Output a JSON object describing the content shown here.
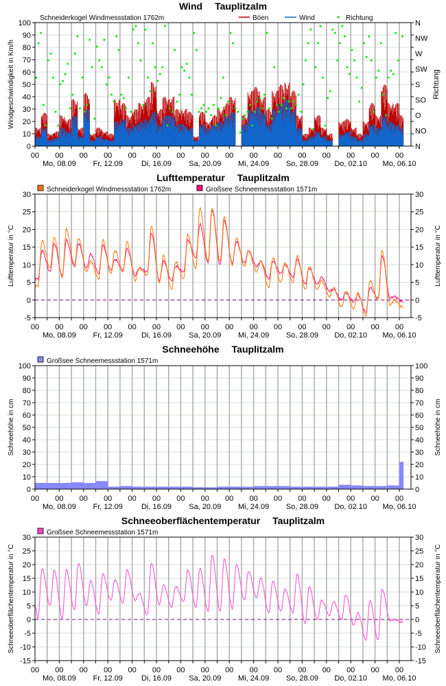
{
  "x_axis": {
    "hour_label": "00",
    "date_labels": [
      "Mo, 08.09",
      "Fr, 12.09",
      "Di, 16.09",
      "Sa, 20.09",
      "Mi, 24.09",
      "So, 28.09",
      "Do, 02.10",
      "Mo, 06.10"
    ],
    "date_label_days": [
      2,
      6,
      10,
      14,
      18,
      22,
      26,
      30
    ],
    "days_shown": 31,
    "data_end_day": 30.35
  },
  "chart_data": [
    {
      "type": "bar",
      "title": "Wind",
      "location": "Tauplitzalm",
      "station": "Schneiderkogel Windmessstation   1762m",
      "ylabel": "Windgeschwindigkeit in Km/h",
      "y2label": "Richtung",
      "ylim": [
        0,
        100
      ],
      "ytick_step": 10,
      "y2_ticks": [
        "N",
        "NO",
        "O",
        "SO",
        "S",
        "SW",
        "W",
        "NW",
        "N"
      ],
      "grid": true,
      "series": [
        {
          "name": "Böen",
          "color": "#bb0000",
          "resolution": "12h",
          "values": [
            15,
            27,
            10,
            12,
            25,
            22,
            38,
            15,
            43,
            10,
            15,
            12,
            10,
            38,
            35,
            25,
            30,
            35,
            40,
            52,
            30,
            40,
            40,
            30,
            30,
            28,
            8,
            28,
            20,
            25,
            30,
            35,
            40,
            0,
            25,
            45,
            48,
            40,
            30,
            45,
            50,
            52,
            45,
            25,
            10,
            15,
            25,
            15,
            10,
            0,
            20,
            22,
            15,
            10,
            20,
            35,
            25,
            50,
            35,
            35,
            25
          ]
        },
        {
          "name": "Wind",
          "color": "#1166cc",
          "resolution": "12h",
          "values": [
            8,
            15,
            5,
            7,
            15,
            12,
            25,
            8,
            30,
            5,
            8,
            6,
            5,
            20,
            22,
            15,
            18,
            20,
            22,
            28,
            18,
            25,
            25,
            18,
            18,
            15,
            5,
            18,
            15,
            18,
            20,
            25,
            28,
            0,
            18,
            30,
            32,
            28,
            18,
            30,
            35,
            38,
            30,
            15,
            5,
            8,
            12,
            8,
            5,
            0,
            10,
            12,
            8,
            5,
            10,
            18,
            15,
            25,
            20,
            18,
            15
          ]
        },
        {
          "name": "Richtung",
          "color": "#00ee00",
          "unit": "deg",
          "values_per_day": [
            [
              200,
              300,
              330,
              120,
              60
            ],
            [
              250,
              270,
              200,
              100,
              60
            ],
            [
              180,
              190,
              210,
              240,
              110
            ],
            [
              150,
              270,
              320,
              110,
              200
            ],
            [
              100,
              120,
              310,
              230,
              80
            ],
            [
              290,
              250,
              230,
              310,
              180
            ],
            [
              200,
              150,
              130,
              320,
              280
            ],
            [
              150,
              140,
              110,
              200,
              100
            ],
            [
              340,
              350,
              300,
              250,
              120
            ],
            [
              340,
              200,
              160,
              300,
              230
            ],
            [
              190,
              210,
              230,
              350,
              60
            ],
            [
              110,
              100,
              280,
              130,
              150
            ],
            [
              230,
              220,
              240,
              200,
              150
            ],
            [
              330,
              280,
              100,
              110,
              120
            ],
            [
              100,
              110,
              90,
              120,
              60
            ],
            [
              110,
              140,
              200,
              90,
              130
            ],
            [
              330,
              300,
              110,
              100,
              40
            ],
            [
              80,
              90,
              100,
              120,
              60
            ],
            [
              100,
              130,
              140,
              110,
              150
            ],
            [
              330,
              110,
              80,
              230,
              120
            ],
            [
              100,
              120,
              140,
              110,
              130
            ],
            [
              110,
              130,
              120,
              150,
              100
            ],
            [
              180,
              250,
              300,
              340,
              50
            ],
            [
              230,
              300,
              350,
              200,
              60
            ],
            [
              140,
              160,
              340,
              330,
              250
            ],
            [
              300,
              350,
              320,
              230,
              210
            ],
            [
              280,
              250,
              200,
              130,
              170
            ],
            [
              300,
              260,
              320,
              250,
              100
            ],
            [
              200,
              220,
              300,
              150,
              90
            ],
            [
              200,
              220,
              210,
              330,
              250
            ],
            [
              320,
              130
            ]
          ]
        }
      ]
    },
    {
      "type": "line",
      "title": "Lufttemperatur",
      "location": "Tauplitzalm",
      "ylabel": "Lufttemperatur in °C",
      "y2label": "Lufttemperatur in °C",
      "ylim": [
        -5,
        30
      ],
      "ytick_step": 5,
      "zero_line": true,
      "grid": true,
      "series": [
        {
          "name": "Großsee Schneemessstation   1571m",
          "color": "#ff1177",
          "start": 6,
          "daily_max": [
            14,
            16,
            17,
            16,
            13,
            15.5,
            11.5,
            14.5,
            9,
            19,
            11,
            9.5,
            17,
            21.5,
            25.5,
            22.5,
            16.5,
            14,
            11,
            11,
            10,
            11.5,
            9,
            6.5,
            3,
            2,
            1.5,
            3.5,
            12.5,
            1
          ],
          "daily_min": [
            6,
            8,
            7,
            9.5,
            9,
            7.5,
            8.5,
            8.5,
            7,
            8,
            5.5,
            5.5,
            8,
            12,
            10.5,
            10,
            10.5,
            10.5,
            9.5,
            6,
            7.5,
            6.5,
            4.5,
            4.5,
            2.5,
            0,
            -0.5,
            -3.5,
            0.5,
            0.5,
            -0.5
          ]
        },
        {
          "name": "Schneiderkogel Windmessstation   1762m",
          "color": "#ff7700",
          "start": 4,
          "daily_max": [
            16.8,
            17.8,
            20,
            17.5,
            11,
            17,
            14,
            16.5,
            9,
            21,
            12.5,
            10.8,
            18.5,
            26,
            26,
            23.5,
            17.5,
            14,
            11,
            12,
            10.5,
            12.5,
            9.5,
            5.5,
            3.5,
            2.5,
            2,
            5.5,
            14,
            0
          ],
          "daily_min": [
            4,
            9,
            6.5,
            10,
            8,
            6,
            7.5,
            8,
            5.5,
            7,
            5,
            3,
            6,
            9,
            11,
            11,
            10,
            9.5,
            8,
            3.5,
            5,
            5,
            3,
            3,
            1,
            -2,
            -2.5,
            -4.5,
            0,
            -1.5,
            -2
          ]
        }
      ]
    },
    {
      "type": "area",
      "title": "Schneehöhe",
      "location": "Tauplitzalm",
      "ylabel": "Schneehöhe in cm",
      "y2label": "Schneehöhe in cm",
      "ylim": [
        0,
        100
      ],
      "ytick_step": 10,
      "grid": true,
      "series": [
        {
          "name": "Großsee Schneemessstation   1571m",
          "color": "#8888ff",
          "daily_values": [
            5,
            5,
            5,
            5.5,
            5,
            6.5,
            2,
            2.5,
            2,
            2,
            2,
            2,
            2,
            1.5,
            1.5,
            2,
            2,
            2,
            2.5,
            2.5,
            2.5,
            2,
            2,
            2,
            2,
            3.5,
            3,
            2.5,
            2.5,
            3,
            22
          ]
        }
      ]
    },
    {
      "type": "line",
      "title": "Schneeoberflächentemperatur",
      "location": "Tauplitzalm",
      "ylabel": "Schneeoberflächentemperatur in °C",
      "y2label": "Schneeoberflächentemperatur in °C",
      "ylim": [
        -15,
        30
      ],
      "ytick_step": 5,
      "zero_line": true,
      "grid": true,
      "series": [
        {
          "name": "Großsee Schneemessstation   1571m",
          "color": "#ff44cc",
          "start": 5,
          "daily_max": [
            18.5,
            18,
            18,
            20.5,
            14,
            16.5,
            14.5,
            18,
            9.5,
            20.5,
            12.5,
            12,
            18,
            18.5,
            23.5,
            22,
            20,
            17.5,
            15,
            14,
            11,
            16.5,
            12,
            7,
            6.5,
            9,
            2.5,
            7,
            11,
            0
          ],
          "daily_min": [
            0.5,
            5,
            0.5,
            3.5,
            5,
            2,
            7,
            6,
            7,
            1.5,
            5.5,
            4.5,
            6.5,
            4.5,
            3,
            3,
            4,
            7,
            8,
            2.5,
            3,
            2.5,
            -1.5,
            0,
            1.5,
            0,
            -2,
            -7.5,
            -7.5,
            -0.5,
            -1
          ]
        }
      ]
    }
  ]
}
